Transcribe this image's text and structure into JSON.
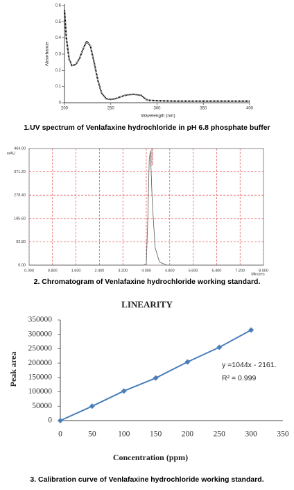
{
  "chart_data": [
    {
      "type": "line",
      "caption": "1.UV spectrum of Venlafaxine hydrochloride in pH 6.8 phosphate buffer",
      "x_label": "Wavelength (nm)",
      "y_label": "Absorbance",
      "x": [
        200,
        202,
        205,
        208,
        212,
        216,
        220,
        224,
        228,
        232,
        236,
        240,
        245,
        250,
        255,
        260,
        265,
        270,
        275,
        280,
        283,
        286,
        290,
        300,
        320,
        350,
        380,
        400
      ],
      "series": [
        {
          "color": "#000000",
          "values": [
            0.57,
            0.4,
            0.27,
            0.23,
            0.235,
            0.27,
            0.33,
            0.38,
            0.35,
            0.25,
            0.14,
            0.06,
            0.025,
            0.02,
            0.025,
            0.035,
            0.045,
            0.05,
            0.052,
            0.048,
            0.045,
            0.03,
            0.015,
            0.012,
            0.01,
            0.01,
            0.01,
            0.01
          ]
        }
      ],
      "xlim": [
        200,
        400
      ],
      "xticks": [
        200,
        250,
        300,
        350,
        400
      ],
      "ylim": [
        0,
        0.6
      ],
      "yticks": [
        0,
        0.1,
        0.2,
        0.3,
        0.4,
        0.5,
        0.6
      ],
      "grid": false,
      "dotted": true
    },
    {
      "type": "line",
      "caption": "2. Chromatogram of Venlafaxine hydrochloride working standard.",
      "x_unit": "Minutes",
      "y_unit": "mAU",
      "peak_label": "Venlafaxine",
      "x": [
        0,
        3.9,
        4.0,
        4.05,
        4.1,
        4.14,
        4.2,
        4.3,
        4.45,
        4.7,
        8.0
      ],
      "series": [
        {
          "color": "#555555",
          "values": [
            0,
            0,
            4,
            180,
            420,
            455,
            260,
            70,
            12,
            0,
            0
          ]
        }
      ],
      "xlim": [
        0,
        8
      ],
      "xticks": [
        {
          "value": 0,
          "label": "0.000"
        },
        {
          "value": 0.8,
          "label": "0.800"
        },
        {
          "value": 1.6,
          "label": "1.600"
        },
        {
          "value": 2.4,
          "label": "2.400"
        },
        {
          "value": 3.2,
          "label": "3.200"
        },
        {
          "value": 4,
          "label": "4.000"
        },
        {
          "value": 4.8,
          "label": "4.800"
        },
        {
          "value": 5.6,
          "label": "5.600"
        },
        {
          "value": 6.4,
          "label": "6.400"
        },
        {
          "value": 7.2,
          "label": "7.200"
        },
        {
          "value": 8,
          "label": "8.000"
        }
      ],
      "ylim": [
        0,
        464
      ],
      "yticks": [
        {
          "value": 0,
          "label": "0.00"
        },
        {
          "value": 92.8,
          "label": "92.80"
        },
        {
          "value": 185.6,
          "label": "185.60"
        },
        {
          "value": 278.4,
          "label": "278.40"
        },
        {
          "value": 371.2,
          "label": "371.20"
        },
        {
          "value": 464,
          "label": "464.00"
        }
      ],
      "grid": true,
      "grid_color": "#e03030"
    },
    {
      "type": "line",
      "title": "LINEARITY",
      "caption": "3. Calibration curve of Venlafaxine hydrochloride working standard.",
      "x_label": "Concentration (ppm)",
      "y_label": "Peak area",
      "annotations": [
        "y =1044x - 2161.",
        "R² = 0.999"
      ],
      "x": [
        0,
        50,
        100,
        150,
        200,
        250,
        300
      ],
      "series": [
        {
          "color": "#4a7ebb",
          "values": [
            0,
            50000,
            103000,
            148000,
            204000,
            255000,
            315000
          ]
        }
      ],
      "xlim": [
        0,
        350
      ],
      "xticks": [
        0,
        50,
        100,
        150,
        200,
        250,
        300,
        350
      ],
      "ylim": [
        0,
        350000
      ],
      "yticks": [
        0,
        50000,
        100000,
        150000,
        200000,
        250000,
        300000,
        350000
      ],
      "grid": false,
      "markers": true
    }
  ]
}
